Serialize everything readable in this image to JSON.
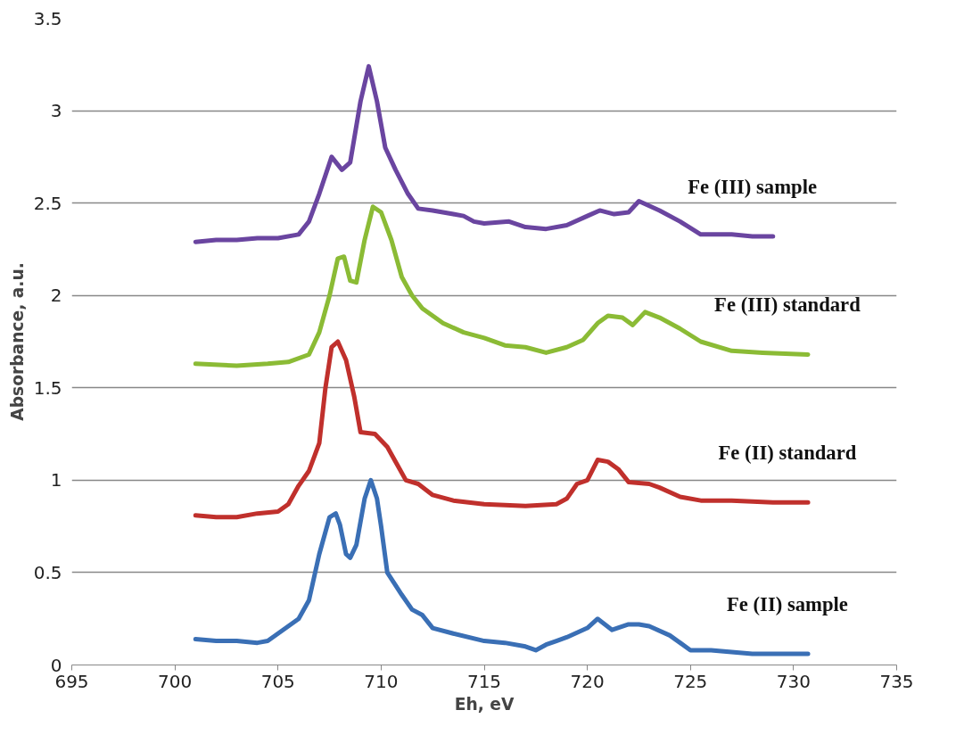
{
  "chart_data": {
    "type": "line",
    "xlabel": "Eh, eV",
    "ylabel": "Absorbance, a.u.",
    "xlim": [
      695,
      735
    ],
    "xticks": [
      695,
      700,
      705,
      710,
      715,
      720,
      725,
      730,
      735
    ],
    "ylim": [
      0,
      3.5
    ],
    "yticks": [
      0,
      0.5,
      1,
      1.5,
      2,
      2.5,
      3,
      3.5
    ],
    "grid": "y",
    "legend": false,
    "marker": "none",
    "line_style": "solid",
    "series": [
      {
        "name": "Fe (II) sample",
        "color": "#3a6fb5",
        "x": [
          701,
          702,
          703,
          704,
          704.5,
          705,
          705.5,
          706,
          706.5,
          707,
          707.5,
          707.8,
          708,
          708.3,
          708.5,
          708.8,
          709.2,
          709.5,
          709.8,
          710,
          710.3,
          711,
          711.5,
          712,
          712.5,
          713.5,
          715,
          716,
          717,
          717.5,
          718,
          718.5,
          719,
          720,
          720.5,
          721.2,
          722,
          722.5,
          723,
          724,
          724.5,
          725,
          726,
          727,
          728,
          729,
          730.7
        ],
        "values": [
          0.14,
          0.13,
          0.13,
          0.12,
          0.13,
          0.17,
          0.21,
          0.25,
          0.35,
          0.6,
          0.8,
          0.82,
          0.76,
          0.6,
          0.58,
          0.65,
          0.9,
          1.0,
          0.9,
          0.75,
          0.5,
          0.38,
          0.3,
          0.27,
          0.2,
          0.17,
          0.13,
          0.12,
          0.1,
          0.08,
          0.11,
          0.13,
          0.15,
          0.2,
          0.25,
          0.19,
          0.22,
          0.22,
          0.21,
          0.16,
          0.12,
          0.08,
          0.08,
          0.07,
          0.06,
          0.06,
          0.06
        ]
      },
      {
        "name": "Fe (II) standard",
        "color": "#c0302c",
        "x": [
          701,
          702,
          703,
          704,
          705,
          705.5,
          706,
          706.5,
          707,
          707.3,
          707.6,
          707.9,
          708.3,
          708.7,
          709,
          709.7,
          710.3,
          710.8,
          711.2,
          711.8,
          712.5,
          713.5,
          715,
          717,
          718.5,
          719,
          719.5,
          720,
          720.5,
          721,
          721.5,
          722,
          723,
          723.5,
          724.5,
          725.5,
          727,
          729,
          730.7
        ],
        "values": [
          0.81,
          0.8,
          0.8,
          0.82,
          0.83,
          0.87,
          0.97,
          1.05,
          1.2,
          1.5,
          1.72,
          1.75,
          1.65,
          1.45,
          1.26,
          1.25,
          1.18,
          1.08,
          1.0,
          0.98,
          0.92,
          0.89,
          0.87,
          0.86,
          0.87,
          0.9,
          0.98,
          1.0,
          1.11,
          1.1,
          1.06,
          0.99,
          0.98,
          0.96,
          0.91,
          0.89,
          0.89,
          0.88,
          0.88
        ]
      },
      {
        "name": "Fe (III) standard",
        "color": "#8bbb35",
        "x": [
          701,
          703,
          704.5,
          705.5,
          706.5,
          707,
          707.5,
          707.9,
          708.2,
          708.5,
          708.8,
          709.2,
          709.6,
          710,
          710.5,
          711,
          711.5,
          712,
          713,
          714,
          715,
          716,
          717,
          718,
          719,
          719.8,
          720.5,
          721,
          721.7,
          722.2,
          722.8,
          723.5,
          724.5,
          725.5,
          727,
          728.5,
          730.7
        ],
        "values": [
          1.63,
          1.62,
          1.63,
          1.64,
          1.68,
          1.8,
          2.0,
          2.2,
          2.21,
          2.08,
          2.07,
          2.3,
          2.48,
          2.45,
          2.3,
          2.1,
          2.0,
          1.93,
          1.85,
          1.8,
          1.77,
          1.73,
          1.72,
          1.69,
          1.72,
          1.76,
          1.85,
          1.89,
          1.88,
          1.84,
          1.91,
          1.88,
          1.82,
          1.75,
          1.7,
          1.69,
          1.68
        ]
      },
      {
        "name": "Fe (III) sample",
        "color": "#6a45a0",
        "x": [
          701,
          702,
          703,
          704,
          705,
          706,
          706.5,
          707,
          707.6,
          708.1,
          708.5,
          709,
          709.4,
          709.8,
          710.2,
          710.7,
          711.3,
          711.8,
          712.5,
          713.5,
          714,
          714.5,
          715,
          716.2,
          717,
          718,
          719,
          720,
          720.6,
          721.3,
          722,
          722.5,
          723.5,
          724.5,
          725.5,
          727,
          728,
          729
        ],
        "values": [
          2.29,
          2.3,
          2.3,
          2.31,
          2.31,
          2.33,
          2.4,
          2.55,
          2.75,
          2.68,
          2.72,
          3.05,
          3.24,
          3.05,
          2.8,
          2.68,
          2.55,
          2.47,
          2.46,
          2.44,
          2.43,
          2.4,
          2.39,
          2.4,
          2.37,
          2.36,
          2.38,
          2.43,
          2.46,
          2.44,
          2.45,
          2.51,
          2.46,
          2.4,
          2.33,
          2.33,
          2.32,
          2.32
        ]
      }
    ]
  }
}
